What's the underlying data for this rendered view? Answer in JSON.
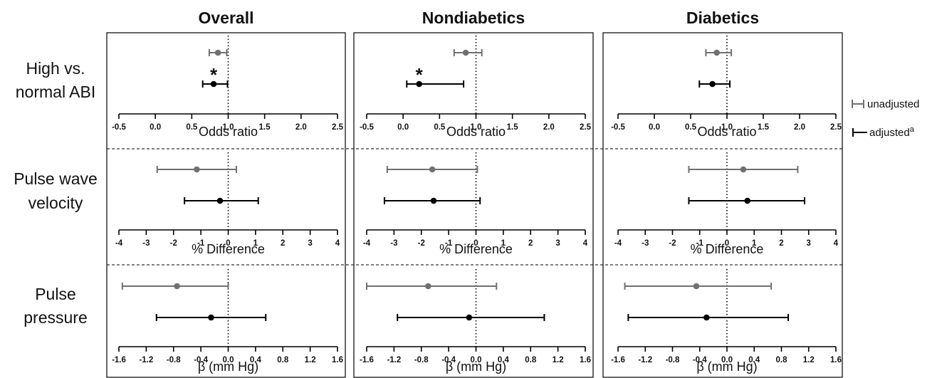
{
  "chart_data": {
    "type": "forest",
    "columns": [
      "Overall",
      "Nondiabetics",
      "Diabetics"
    ],
    "rows": [
      {
        "label_lines": [
          "High vs.",
          "normal ABI"
        ],
        "axis_label": "Odds ratio",
        "axis": {
          "min": -0.5,
          "max": 2.5,
          "ticks": [
            "-0.5",
            "0.0",
            "0.5",
            "1.0",
            "1.5",
            "2.0",
            "2.5"
          ],
          "reference": 1.0
        },
        "panels": [
          {
            "unadjusted": {
              "est": 0.86,
              "lo": 0.74,
              "hi": 0.98
            },
            "adjusted": {
              "est": 0.8,
              "lo": 0.65,
              "hi": 0.99,
              "significant": true
            }
          },
          {
            "unadjusted": {
              "est": 0.86,
              "lo": 0.7,
              "hi": 1.08
            },
            "adjusted": {
              "est": 0.22,
              "lo": 0.05,
              "hi": 0.83,
              "significant": true
            }
          },
          {
            "unadjusted": {
              "est": 0.86,
              "lo": 0.71,
              "hi": 1.06
            },
            "adjusted": {
              "est": 0.8,
              "lo": 0.62,
              "hi": 1.04,
              "significant": false
            }
          }
        ]
      },
      {
        "label_lines": [
          "Pulse wave",
          "velocity"
        ],
        "axis_label": "% Difference",
        "axis": {
          "min": -4,
          "max": 4,
          "ticks": [
            "-4",
            "-3",
            "-2",
            "-1",
            "0",
            "1",
            "2",
            "3",
            "4"
          ],
          "reference": 0
        },
        "panels": [
          {
            "unadjusted": {
              "est": -1.15,
              "lo": -2.6,
              "hi": 0.3
            },
            "adjusted": {
              "est": -0.3,
              "lo": -1.6,
              "hi": 1.1
            }
          },
          {
            "unadjusted": {
              "est": -1.6,
              "lo": -3.25,
              "hi": 0.05
            },
            "adjusted": {
              "est": -1.55,
              "lo": -3.35,
              "hi": 0.15
            }
          },
          {
            "unadjusted": {
              "est": 0.6,
              "lo": -1.4,
              "hi": 2.6
            },
            "adjusted": {
              "est": 0.75,
              "lo": -1.4,
              "hi": 2.85
            }
          }
        ]
      },
      {
        "label_lines": [
          "Pulse",
          "pressure"
        ],
        "axis_label": "β (mm Hg)",
        "axis": {
          "min": -1.6,
          "max": 1.6,
          "ticks": [
            "-1.6",
            "-1.2",
            "-0.8",
            "-0.4",
            "0.0",
            "0.4",
            "0.8",
            "1.2",
            "1.6"
          ],
          "reference": 0
        },
        "panels": [
          {
            "unadjusted": {
              "est": -0.75,
              "lo": -1.55,
              "hi": 0.0
            },
            "adjusted": {
              "est": -0.25,
              "lo": -1.05,
              "hi": 0.55
            }
          },
          {
            "unadjusted": {
              "est": -0.7,
              "lo": -1.6,
              "hi": 0.3
            },
            "adjusted": {
              "est": -0.1,
              "lo": -1.15,
              "hi": 1.0
            }
          },
          {
            "unadjusted": {
              "est": -0.45,
              "lo": -1.5,
              "hi": 0.65
            },
            "adjusted": {
              "est": -0.3,
              "lo": -1.45,
              "hi": 0.9
            }
          }
        ]
      }
    ],
    "significance_marker": "*",
    "legend": {
      "items": [
        {
          "label": "unadjusted",
          "superscript": "",
          "color": "#707070"
        },
        {
          "label": "adjusted",
          "superscript": "a",
          "color": "#000000"
        }
      ],
      "placement": "right"
    },
    "colors": {
      "unadjusted": "#707070",
      "adjusted": "#000000"
    }
  }
}
